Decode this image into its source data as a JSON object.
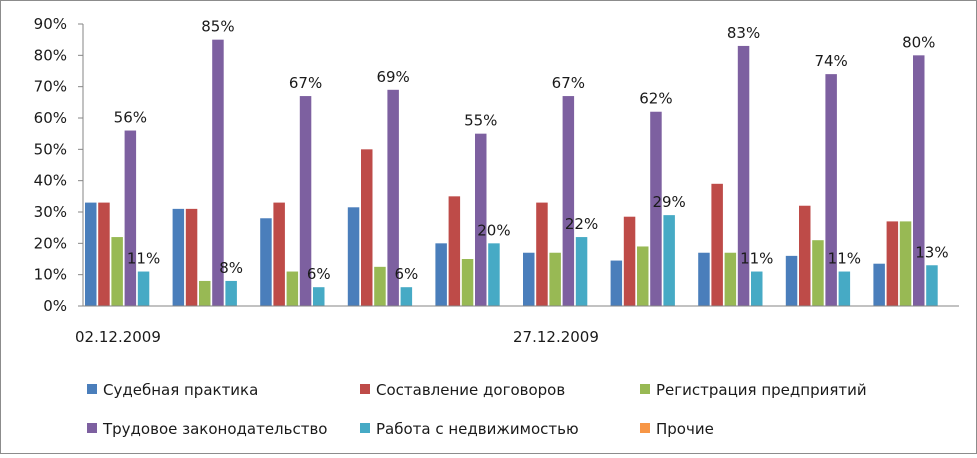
{
  "chart_data": {
    "type": "bar",
    "categories": [
      "02.12.2009",
      "",
      "",
      "",
      "",
      "27.12.2009",
      "",
      "",
      "",
      ""
    ],
    "series": [
      {
        "name": "Судебная практика",
        "color": "#4a7ebb",
        "values": [
          33,
          31,
          28,
          31.5,
          20,
          17,
          14.5,
          17,
          16,
          13.5
        ]
      },
      {
        "name": "Составление договоров",
        "color": "#be4b48",
        "values": [
          33,
          31,
          33,
          50,
          35,
          33,
          28.5,
          39,
          32,
          27
        ]
      },
      {
        "name": "Регистрация предприятий",
        "color": "#98b954",
        "values": [
          22,
          8,
          11,
          12.5,
          15,
          17,
          19,
          17,
          21,
          27
        ]
      },
      {
        "name": "Трудовое законодательство",
        "color": "#7d60a0",
        "values": [
          56,
          85,
          67,
          69,
          55,
          67,
          62,
          83,
          74,
          80
        ]
      },
      {
        "name": "Работа с недвижимостью",
        "color": "#46aac5",
        "values": [
          11,
          8,
          6,
          6,
          20,
          22,
          29,
          11,
          11,
          13
        ]
      },
      {
        "name": "Прочие",
        "color": "#f79646",
        "values": [
          0,
          0,
          0,
          0,
          0,
          0,
          0,
          0,
          0,
          0
        ]
      }
    ],
    "data_labels": [
      {
        "series": 3,
        "index": 0,
        "text": "56%"
      },
      {
        "series": 3,
        "index": 1,
        "text": "85%"
      },
      {
        "series": 3,
        "index": 2,
        "text": "67%"
      },
      {
        "series": 3,
        "index": 3,
        "text": "69%"
      },
      {
        "series": 3,
        "index": 4,
        "text": "55%"
      },
      {
        "series": 3,
        "index": 5,
        "text": "67%"
      },
      {
        "series": 3,
        "index": 6,
        "text": "62%"
      },
      {
        "series": 3,
        "index": 7,
        "text": "83%"
      },
      {
        "series": 3,
        "index": 8,
        "text": "74%"
      },
      {
        "series": 3,
        "index": 9,
        "text": "80%"
      },
      {
        "series": 4,
        "index": 0,
        "text": "11%"
      },
      {
        "series": 4,
        "index": 1,
        "text": "8%"
      },
      {
        "series": 4,
        "index": 2,
        "text": "6%"
      },
      {
        "series": 4,
        "index": 3,
        "text": "6%"
      },
      {
        "series": 4,
        "index": 4,
        "text": "20%"
      },
      {
        "series": 4,
        "index": 5,
        "text": "22%"
      },
      {
        "series": 4,
        "index": 6,
        "text": "29%"
      },
      {
        "series": 4,
        "index": 7,
        "text": "11%"
      },
      {
        "series": 4,
        "index": 8,
        "text": "11%"
      },
      {
        "series": 4,
        "index": 9,
        "text": "13%"
      }
    ],
    "yticks": [
      "0%",
      "10%",
      "20%",
      "30%",
      "40%",
      "50%",
      "60%",
      "70%",
      "80%",
      "90%"
    ],
    "ylim": [
      0,
      90
    ],
    "title": "",
    "xlabel": "",
    "ylabel": "",
    "grid": false,
    "legend": "bottom"
  }
}
